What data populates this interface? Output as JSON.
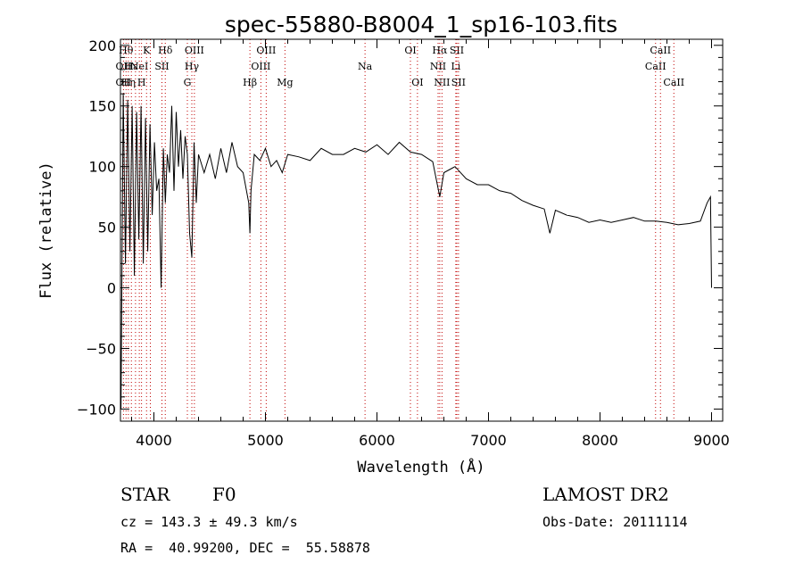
{
  "chart_data": {
    "type": "line",
    "title": "spec-55880-B8004_1_sp16-103.fits",
    "xlabel": "Wavelength (Å)",
    "ylabel": "Flux (relative)",
    "xlim": [
      3700,
      9100
    ],
    "ylim": [
      -110,
      205
    ],
    "xticks": [
      4000,
      5000,
      6000,
      7000,
      8000,
      9000
    ],
    "yticks": [
      -100,
      -50,
      0,
      50,
      100,
      150,
      200
    ],
    "grid": false,
    "legend": "none",
    "line_color": "#000000",
    "marker_color": "#c00000",
    "series": [
      {
        "x": [
          3705,
          3725,
          3745,
          3765,
          3785,
          3805,
          3825,
          3845,
          3865,
          3885,
          3905,
          3925,
          3945,
          3965,
          3985,
          4005,
          4025,
          4045,
          4065,
          4085,
          4102,
          4120,
          4140,
          4160,
          4180,
          4200,
          4220,
          4240,
          4260,
          4280,
          4300,
          4320,
          4340,
          4360,
          4380,
          4400,
          4450,
          4500,
          4550,
          4600,
          4650,
          4700,
          4750,
          4800,
          4850,
          4861,
          4870,
          4900,
          4950,
          5000,
          5050,
          5100,
          5150,
          5200,
          5300,
          5400,
          5500,
          5600,
          5700,
          5800,
          5900,
          6000,
          6100,
          6200,
          6300,
          6400,
          6500,
          6563,
          6600,
          6700,
          6800,
          6900,
          7000,
          7100,
          7200,
          7300,
          7400,
          7500,
          7550,
          7600,
          7700,
          7800,
          7900,
          8000,
          8100,
          8200,
          8300,
          8400,
          8500,
          8600,
          8700,
          8800,
          8900,
          8960,
          8990,
          9000
        ],
        "y": [
          -100,
          160,
          20,
          155,
          30,
          150,
          10,
          145,
          40,
          150,
          20,
          140,
          30,
          135,
          60,
          120,
          80,
          90,
          0,
          115,
          70,
          110,
          95,
          150,
          80,
          145,
          100,
          130,
          90,
          125,
          110,
          45,
          25,
          120,
          70,
          110,
          95,
          110,
          90,
          115,
          95,
          120,
          100,
          95,
          70,
          45,
          80,
          110,
          105,
          115,
          100,
          105,
          95,
          110,
          108,
          105,
          115,
          110,
          110,
          115,
          112,
          118,
          110,
          120,
          112,
          110,
          104,
          75,
          95,
          100,
          90,
          85,
          85,
          80,
          78,
          72,
          68,
          65,
          45,
          64,
          60,
          58,
          54,
          56,
          54,
          56,
          58,
          55,
          55,
          54,
          52,
          53,
          55,
          70,
          75,
          0
        ]
      }
    ],
    "markers": [
      {
        "wl": 3727,
        "row1": "",
        "row2": "OII",
        "row3": "OII"
      },
      {
        "wl": 3750,
        "row1": "Hθ",
        "row2": "",
        "row3": ""
      },
      {
        "wl": 3771,
        "row1": "",
        "row2": "",
        "row3": "Hη"
      },
      {
        "wl": 3798,
        "row1": "",
        "row2": "Hε",
        "row3": ""
      },
      {
        "wl": 3835,
        "row1": "",
        "row2": "",
        "row3": ""
      },
      {
        "wl": 3869,
        "row1": "",
        "row2": "NeI",
        "row3": ""
      },
      {
        "wl": 3889,
        "row1": "",
        "row2": "",
        "row3": "H"
      },
      {
        "wl": 3934,
        "row1": "K",
        "row2": "",
        "row3": ""
      },
      {
        "wl": 3968,
        "row1": "",
        "row2": "",
        "row3": ""
      },
      {
        "wl": 4072,
        "row1": "",
        "row2": "SII",
        "row3": ""
      },
      {
        "wl": 4102,
        "row1": "Hδ",
        "row2": "",
        "row3": ""
      },
      {
        "wl": 4300,
        "row1": "",
        "row2": "",
        "row3": "G"
      },
      {
        "wl": 4340,
        "row1": "",
        "row2": "Hγ",
        "row3": ""
      },
      {
        "wl": 4363,
        "row1": "OIII",
        "row2": "",
        "row3": ""
      },
      {
        "wl": 4861,
        "row1": "",
        "row2": "",
        "row3": "Hβ"
      },
      {
        "wl": 4959,
        "row1": "",
        "row2": "OIII",
        "row3": ""
      },
      {
        "wl": 5007,
        "row1": "OIII",
        "row2": "",
        "row3": ""
      },
      {
        "wl": 5175,
        "row1": "",
        "row2": "",
        "row3": "Mg"
      },
      {
        "wl": 5893,
        "row1": "",
        "row2": "Na",
        "row3": ""
      },
      {
        "wl": 6300,
        "row1": "OI",
        "row2": "",
        "row3": ""
      },
      {
        "wl": 6363,
        "row1": "",
        "row2": "",
        "row3": "OI"
      },
      {
        "wl": 6548,
        "row1": "",
        "row2": "NII",
        "row3": ""
      },
      {
        "wl": 6563,
        "row1": "Hα",
        "row2": "",
        "row3": ""
      },
      {
        "wl": 6583,
        "row1": "",
        "row2": "",
        "row3": "NII"
      },
      {
        "wl": 6707,
        "row1": "",
        "row2": "Li",
        "row3": ""
      },
      {
        "wl": 6716,
        "row1": "SII",
        "row2": "",
        "row3": ""
      },
      {
        "wl": 6731,
        "row1": "",
        "row2": "",
        "row3": "SII"
      },
      {
        "wl": 8498,
        "row1": "",
        "row2": "CaII",
        "row3": ""
      },
      {
        "wl": 8542,
        "row1": "CaII",
        "row2": "",
        "row3": ""
      },
      {
        "wl": 8662,
        "row1": "",
        "row2": "",
        "row3": "CaII"
      }
    ]
  },
  "info": {
    "class_label": "STAR",
    "subclass_label": "F0",
    "survey": "LAMOST DR2",
    "cz": "cz = 143.3 ± 49.3 km/s",
    "obs_date": "Obs-Date: 20111114",
    "coords": "RA =  40.99200, DEC =  55.58878"
  }
}
